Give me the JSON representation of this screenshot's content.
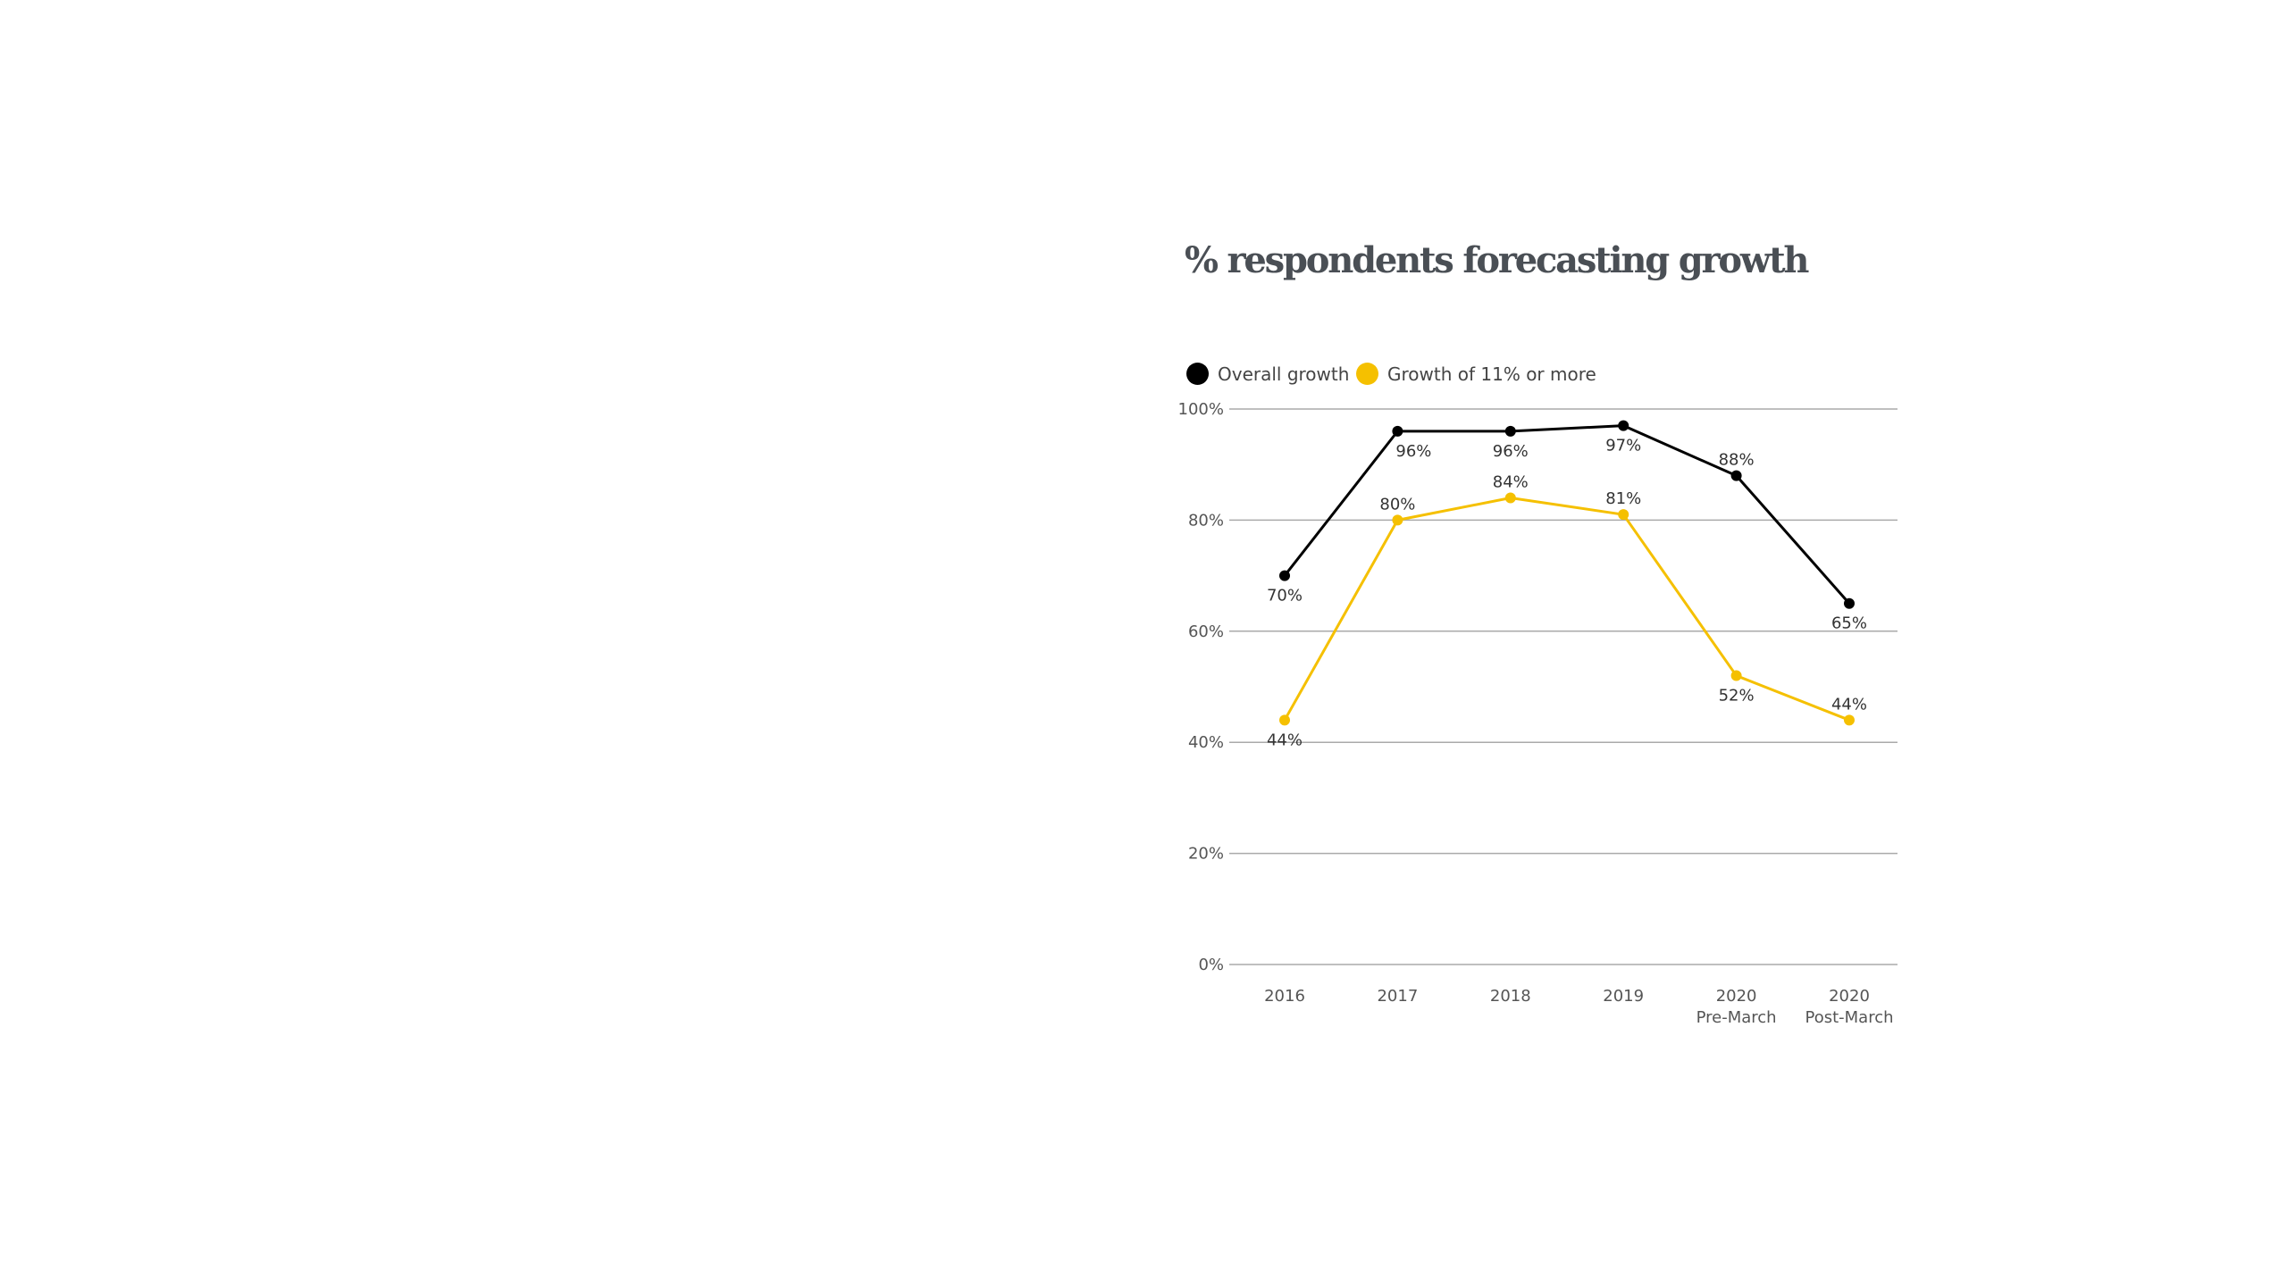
{
  "chart_data": {
    "type": "line",
    "title": "% respondents forecasting growth",
    "categories": [
      [
        "2016"
      ],
      [
        "2017"
      ],
      [
        "2018"
      ],
      [
        "2019"
      ],
      [
        "2020",
        "Pre-March"
      ],
      [
        "2020",
        "Post-March"
      ]
    ],
    "series": [
      {
        "name": "Overall growth",
        "color": "#000000",
        "values": [
          70,
          96,
          96,
          97,
          88,
          65
        ],
        "labels": [
          "70%",
          "96%",
          "96%",
          "97%",
          "88%",
          "65%"
        ]
      },
      {
        "name": "Growth of 11% or more",
        "color": "#f5c000",
        "values": [
          44,
          80,
          84,
          81,
          52,
          44
        ],
        "labels": [
          "44%",
          "80%",
          "84%",
          "81%",
          "52%",
          "44%"
        ]
      }
    ],
    "ylim": [
      0,
      100
    ],
    "yticks": [
      0,
      20,
      40,
      60,
      80,
      100
    ],
    "ytick_labels": [
      "0%",
      "20%",
      "40%",
      "60%",
      "80%",
      "100%"
    ],
    "grid": true,
    "legend": "top-left"
  }
}
